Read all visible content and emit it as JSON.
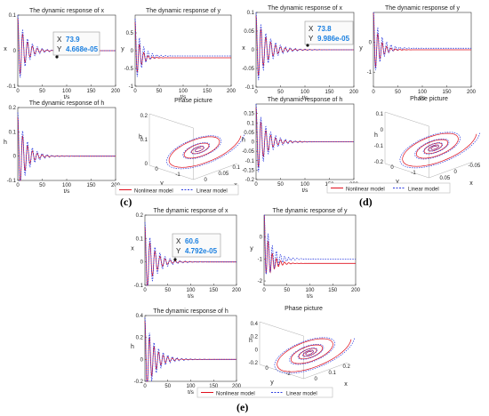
{
  "series_colors": {
    "nonlinear": "#e0101e",
    "linear": "#2f3fe0"
  },
  "legend": {
    "nonlinear": "Nonlinear model",
    "linear": "Linear model"
  },
  "panel_labels": {
    "c": "(c)",
    "d": "(d)",
    "e": "(e)"
  },
  "datatips": {
    "c": {
      "x_label": "X",
      "x_value": "73.9",
      "y_label": "Y",
      "y_value": "4.668e-05"
    },
    "d": {
      "x_label": "X",
      "x_value": "73.8",
      "y_label": "Y",
      "y_value": "9.986e-05"
    },
    "e": {
      "x_label": "X",
      "x_value": "60.6",
      "y_label": "Y",
      "y_value": "4.792e-05"
    }
  },
  "chart_data": [
    {
      "group": "c",
      "type": "line",
      "title": "The dynamic response of x",
      "xlabel": "t/s",
      "ylabel": "x",
      "xlim": [
        0,
        200
      ],
      "ylim": [
        -0.1,
        0.1
      ],
      "xticks": [
        "0",
        "50",
        "100",
        "150",
        "200"
      ],
      "yticks": [
        "-0.1",
        "0",
        "0.1"
      ],
      "series": [
        {
          "name": "Nonlinear model",
          "amp": 0.09,
          "decay": 15,
          "period": 10,
          "settle": 0
        },
        {
          "name": "Linear model",
          "amp": 0.1,
          "decay": 18,
          "period": 10,
          "settle": 0
        }
      ]
    },
    {
      "group": "c",
      "type": "line",
      "title": "The dynamic response of y",
      "xlabel": "t/s",
      "ylabel": "y",
      "xlim": [
        0,
        200
      ],
      "ylim": [
        -1,
        1
      ],
      "xticks": [
        "0",
        "50",
        "100",
        "150",
        "200"
      ],
      "yticks": [
        "-1",
        "-0.5",
        "0",
        "0.5"
      ],
      "series": [
        {
          "name": "Nonlinear model",
          "amp": 0.8,
          "decay": 10,
          "period": 9,
          "settle": -0.2
        },
        {
          "name": "Linear model",
          "amp": 0.9,
          "decay": 14,
          "period": 9,
          "settle": -0.15
        }
      ]
    },
    {
      "group": "c",
      "type": "line",
      "title": "The dynamic response of h",
      "xlabel": "t/s",
      "ylabel": "h",
      "xlim": [
        0,
        200
      ],
      "ylim": [
        -0.1,
        0.2
      ],
      "xticks": [
        "0",
        "50",
        "100",
        "150",
        "200"
      ],
      "yticks": [
        "-0.1",
        "0",
        "0.1",
        "0.2"
      ],
      "series": [
        {
          "name": "Nonlinear model",
          "amp": 0.16,
          "decay": 15,
          "period": 10,
          "settle": 0
        },
        {
          "name": "Linear model",
          "amp": 0.18,
          "decay": 18,
          "period": 10,
          "settle": 0
        }
      ]
    },
    {
      "group": "c",
      "type": "phase3d",
      "title": "Phase picture",
      "xlabel": "x",
      "ylabel": "y",
      "zlabel": "h",
      "zticks": [
        "0",
        "0.1",
        "0.2"
      ],
      "yticks": [
        "0",
        "-1"
      ],
      "xticks": [
        "0",
        "0.05",
        "0.1"
      ],
      "loops": 4
    },
    {
      "group": "d",
      "type": "line",
      "title": "The dynamic response of x",
      "xlabel": "t/s",
      "ylabel": "x",
      "xlim": [
        0,
        200
      ],
      "ylim": [
        -0.1,
        0.1
      ],
      "xticks": [
        "0",
        "50",
        "100",
        "150",
        "200"
      ],
      "yticks": [
        "-0.1",
        "-0.05",
        "0",
        "0.05",
        "0.1"
      ],
      "series": [
        {
          "name": "Nonlinear model",
          "amp": 0.09,
          "decay": 20,
          "period": 10,
          "settle": 0
        },
        {
          "name": "Linear model",
          "amp": 0.1,
          "decay": 24,
          "period": 10,
          "settle": 0
        }
      ]
    },
    {
      "group": "d",
      "type": "line",
      "title": "The dynamic response of y",
      "xlabel": "t/s",
      "ylabel": "y",
      "xlim": [
        0,
        200
      ],
      "ylim": [
        -1.5,
        1
      ],
      "xticks": [
        "0",
        "50",
        "100",
        "150",
        "200"
      ],
      "yticks": [
        "-1",
        "0"
      ],
      "series": [
        {
          "name": "Nonlinear model",
          "amp": 1.0,
          "decay": 12,
          "period": 9,
          "settle": -0.25
        },
        {
          "name": "Linear model",
          "amp": 1.1,
          "decay": 16,
          "period": 9,
          "settle": -0.2
        }
      ]
    },
    {
      "group": "d",
      "type": "line",
      "title": "The dynamic response of h",
      "xlabel": "t/s",
      "ylabel": "h",
      "xlim": [
        0,
        200
      ],
      "ylim": [
        -0.2,
        0.2
      ],
      "xticks": [
        "0",
        "50",
        "100",
        "150",
        "200"
      ],
      "yticks": [
        "-0.2",
        "-0.15",
        "-0.1",
        "-0.05",
        "0",
        "0.05",
        "0.1",
        "0.15"
      ],
      "series": [
        {
          "name": "Nonlinear model",
          "amp": 0.18,
          "decay": 18,
          "period": 10,
          "settle": 0
        },
        {
          "name": "Linear model",
          "amp": 0.2,
          "decay": 22,
          "period": 10,
          "settle": 0
        }
      ]
    },
    {
      "group": "d",
      "type": "phase3d",
      "title": "Phase picture",
      "xlabel": "x",
      "ylabel": "y",
      "zlabel": "h",
      "zticks": [
        "-0.2",
        "-0.1",
        "0",
        "0.1"
      ],
      "yticks": [
        "0",
        "-1"
      ],
      "xticks": [
        "0.05",
        "0",
        "-0.05"
      ],
      "loops": 5
    },
    {
      "group": "e",
      "type": "line",
      "title": "The dynamic response of x",
      "xlabel": "t/s",
      "ylabel": "x",
      "xlim": [
        0,
        200
      ],
      "ylim": [
        -0.1,
        0.2
      ],
      "xticks": [
        "0",
        "50",
        "100",
        "150",
        "200"
      ],
      "yticks": [
        "-0.1",
        "0",
        "0.1",
        "0.2"
      ],
      "series": [
        {
          "name": "Nonlinear model",
          "amp": 0.15,
          "decay": 18,
          "period": 11,
          "settle": 0
        },
        {
          "name": "Linear model",
          "amp": 0.17,
          "decay": 22,
          "period": 11,
          "settle": 0
        }
      ]
    },
    {
      "group": "e",
      "type": "line",
      "title": "The dynamic response of y",
      "xlabel": "t/s",
      "ylabel": "y",
      "xlim": [
        0,
        200
      ],
      "ylim": [
        -2.2,
        1
      ],
      "xticks": [
        "0",
        "50",
        "100",
        "150",
        "200"
      ],
      "yticks": [
        "-2",
        "-1",
        "0"
      ],
      "series": [
        {
          "name": "Nonlinear model",
          "amp": 1.4,
          "decay": 14,
          "period": 9,
          "settle": -1.2
        },
        {
          "name": "Linear model",
          "amp": 1.5,
          "decay": 18,
          "period": 9,
          "settle": -1.0
        }
      ]
    },
    {
      "group": "e",
      "type": "line",
      "title": "The dynamic response of h",
      "xlabel": "t/s",
      "ylabel": "h",
      "xlim": [
        0,
        200
      ],
      "ylim": [
        -0.2,
        0.4
      ],
      "xticks": [
        "0",
        "50",
        "100",
        "150",
        "200"
      ],
      "yticks": [
        "-0.2",
        "0",
        "0.2",
        "0.4"
      ],
      "series": [
        {
          "name": "Nonlinear model",
          "amp": 0.35,
          "decay": 18,
          "period": 10,
          "settle": 0
        },
        {
          "name": "Linear model",
          "amp": 0.38,
          "decay": 22,
          "period": 10,
          "settle": 0
        }
      ]
    },
    {
      "group": "e",
      "type": "phase3d",
      "title": "Phase picture",
      "xlabel": "x",
      "ylabel": "y",
      "zlabel": "h",
      "zticks": [
        "-0.2",
        "0",
        "0.2",
        "0.4"
      ],
      "yticks": [
        "0",
        "-2"
      ],
      "xticks": [
        "0",
        "0.1",
        "0.2"
      ],
      "loops": 5
    }
  ]
}
